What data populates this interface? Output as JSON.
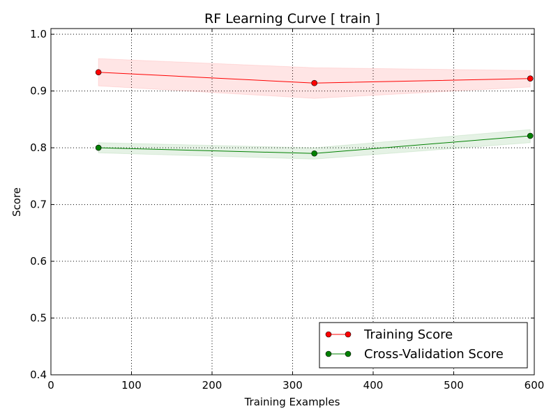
{
  "chart_data": {
    "type": "line",
    "title": "RF Learning Curve [ train ]",
    "xlabel": "Training Examples",
    "ylabel": "Score",
    "xlim": [
      0,
      600
    ],
    "ylim": [
      0.4,
      1.01
    ],
    "xticks": [
      0,
      100,
      200,
      300,
      400,
      500,
      600
    ],
    "xtick_labels": [
      "0",
      "100",
      "200",
      "300",
      "400",
      "500",
      "600"
    ],
    "yticks": [
      0.4,
      0.5,
      0.6,
      0.7,
      0.8,
      0.9,
      1.0
    ],
    "ytick_labels": [
      "0.4",
      "0.5",
      "0.6",
      "0.7",
      "0.8",
      "0.9",
      "1.0"
    ],
    "grid": true,
    "legend_position": "bottom-right",
    "series": [
      {
        "name": "Training Score",
        "color": "#ff0000",
        "band_color": "#ff0000",
        "x": [
          59,
          327,
          595
        ],
        "y": [
          0.933,
          0.914,
          0.922
        ],
        "lower": [
          0.909,
          0.887,
          0.907
        ],
        "upper": [
          0.957,
          0.941,
          0.936
        ]
      },
      {
        "name": "Cross-Validation Score",
        "color": "#008000",
        "band_color": "#008000",
        "x": [
          59,
          327,
          595
        ],
        "y": [
          0.8,
          0.79,
          0.821
        ],
        "lower": [
          0.791,
          0.78,
          0.809
        ],
        "upper": [
          0.809,
          0.8,
          0.832
        ]
      }
    ]
  }
}
